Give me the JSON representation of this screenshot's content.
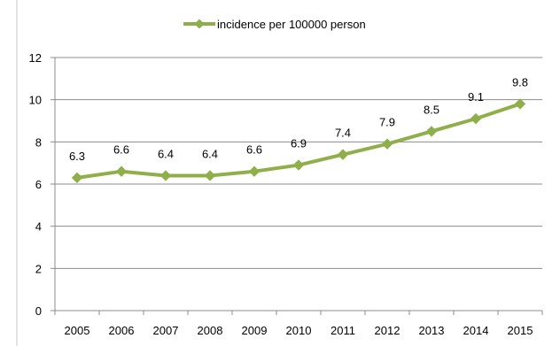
{
  "chart_data": {
    "type": "line",
    "title": "",
    "xlabel": "",
    "ylabel": "",
    "categories": [
      "2005",
      "2006",
      "2007",
      "2008",
      "2009",
      "2010",
      "2011",
      "2012",
      "2013",
      "2014",
      "2015"
    ],
    "series": [
      {
        "name": "incidence per 100000 person",
        "values": [
          6.3,
          6.6,
          6.4,
          6.4,
          6.6,
          6.9,
          7.4,
          7.9,
          8.5,
          9.1,
          9.8
        ],
        "data_labels": [
          "6.3",
          "6.6",
          "6.4",
          "6.4",
          "6.6",
          "6.9",
          "7.4",
          "7.9",
          "8.5",
          "9.1",
          "9.8"
        ],
        "color": "#8FAF4A",
        "marker": "diamond"
      }
    ],
    "yticks": [
      "0",
      "2",
      "4",
      "6",
      "8",
      "10",
      "12"
    ],
    "ylim": [
      0,
      12
    ],
    "grid": "horizontal",
    "legend_position": "top-center",
    "gridline_color": "#8C8C8C",
    "axis_color": "#8C8C8C"
  }
}
